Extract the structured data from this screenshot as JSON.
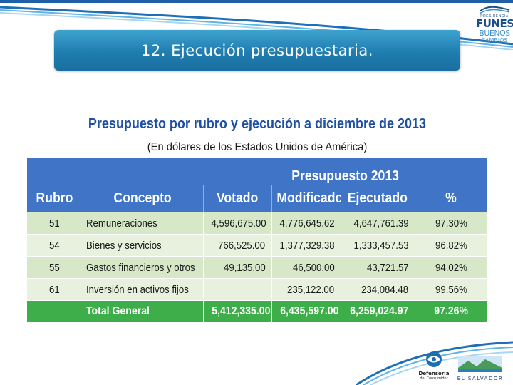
{
  "slide": {
    "title": "12. Ejecución presupuestaria."
  },
  "logo_top": {
    "line1": "PRESIDENCIA",
    "line2": "FUNES",
    "line3": "BUENOS",
    "line4": "CAMBIOS"
  },
  "table": {
    "title": "Presupuesto por rubro y ejecución a diciembre de 2013",
    "subtitle": "(En dólares de los Estados Unidos de América)",
    "group_header": "Presupuesto 2013",
    "headers": {
      "rubro": "Rubro",
      "concepto": "Concepto",
      "votado": "Votado",
      "modificado": "Modificado",
      "ejecutado": "Ejecutado",
      "pct": "%"
    },
    "rows": [
      {
        "rubro": "51",
        "concepto": "Remuneraciones",
        "votado": "4,596,675.00",
        "modificado": "4,776,645.62",
        "ejecutado": "4,647,761.39",
        "pct": "97.30%"
      },
      {
        "rubro": "54",
        "concepto": "Bienes y servicios",
        "votado": "766,525.00",
        "modificado": "1,377,329.38",
        "ejecutado": "1,333,457.53",
        "pct": "96.82%"
      },
      {
        "rubro": "55",
        "concepto": "Gastos financieros y otros",
        "votado": "49,135.00",
        "modificado": "46,500.00",
        "ejecutado": "43,721.57",
        "pct": "94.02%"
      },
      {
        "rubro": "61",
        "concepto": "Inversión en activos fijos",
        "votado": "",
        "modificado": "235,122.00",
        "ejecutado": "234,084.48",
        "pct": "99.56%"
      }
    ],
    "total": {
      "label": "Total General",
      "votado": "5,412,335.00",
      "modificado": "6,435,597.00",
      "ejecutado": "6,259,024.97",
      "pct": "97.26%"
    }
  },
  "logo_bottom_left": {
    "name_line1": "Defensoría",
    "name_line2": "del Consumidor"
  },
  "logo_bottom_right": {
    "name": "EL SALVADOR"
  },
  "colors": {
    "title_bar": "#1f7db0",
    "header_blue": "#3f74c6",
    "title_text": "#1e4fa3",
    "row_green_dark": "#d6e8c8",
    "row_green_light": "#e7f1dd",
    "total_green": "#3dae49"
  }
}
